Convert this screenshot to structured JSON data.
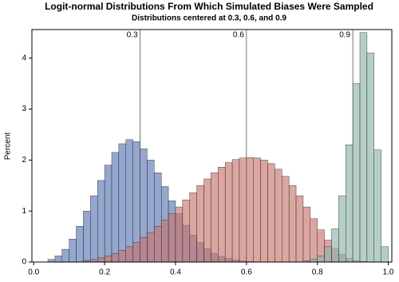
{
  "chart_data": {
    "type": "histogram",
    "title": "Logit-normal Distributions From Which Simulated Biases Were Sampled",
    "subtitle": "Distributions centered at 0.3, 0.6, and 0.9",
    "y_label": "Percent",
    "bins": [
      0,
      0.02,
      0.04,
      0.06,
      0.08,
      0.1,
      0.12,
      0.14,
      0.16,
      0.18,
      0.2,
      0.22,
      0.24,
      0.26,
      0.28,
      0.3,
      0.32,
      0.34,
      0.36,
      0.38,
      0.4,
      0.42,
      0.44,
      0.46,
      0.48,
      0.5,
      0.52,
      0.54,
      0.56,
      0.58,
      0.6,
      0.62,
      0.64,
      0.66,
      0.68,
      0.7,
      0.72,
      0.74,
      0.76,
      0.78,
      0.8,
      0.82,
      0.84,
      0.86,
      0.88,
      0.9,
      0.92,
      0.94,
      0.96,
      0.98,
      1.0
    ],
    "series": [
      {
        "color": "#5a78b4",
        "values": [
          0,
          0,
          0.05,
          0.12,
          0.25,
          0.45,
          0.7,
          1.0,
          1.3,
          1.6,
          1.9,
          2.15,
          2.32,
          2.4,
          2.36,
          2.22,
          2.0,
          1.75,
          1.48,
          1.2,
          0.95,
          0.72,
          0.53,
          0.38,
          0.26,
          0.17,
          0.11,
          0.07,
          0.04,
          0.02,
          0.01,
          0,
          0,
          0,
          0,
          0,
          0,
          0,
          0,
          0,
          0,
          0,
          0,
          0,
          0,
          0,
          0,
          0,
          0,
          0
        ]
      },
      {
        "color": "#c8766e",
        "values": [
          0,
          0,
          0,
          0,
          0,
          0,
          0,
          0.03,
          0.05,
          0.08,
          0.12,
          0.17,
          0.23,
          0.3,
          0.38,
          0.48,
          0.58,
          0.7,
          0.82,
          0.95,
          1.08,
          1.22,
          1.36,
          1.5,
          1.63,
          1.75,
          1.86,
          1.95,
          2.01,
          2.04,
          2.05,
          2.04,
          2.0,
          1.93,
          1.82,
          1.68,
          1.5,
          1.3,
          1.08,
          0.85,
          0.63,
          0.43,
          0.27,
          0.15,
          0.07,
          0.03,
          0.01,
          0,
          0,
          0
        ]
      },
      {
        "color": "#8fb3aa",
        "values": [
          0,
          0,
          0,
          0,
          0,
          0,
          0,
          0,
          0,
          0,
          0,
          0,
          0,
          0,
          0,
          0,
          0,
          0,
          0,
          0,
          0,
          0,
          0,
          0,
          0,
          0,
          0,
          0,
          0,
          0,
          0,
          0,
          0,
          0,
          0,
          0,
          0,
          0,
          0.02,
          0.05,
          0.12,
          0.3,
          0.65,
          1.3,
          2.3,
          3.5,
          4.5,
          4.1,
          2.2,
          0.3
        ]
      }
    ],
    "reference_lines": [
      0.3,
      0.6,
      0.9
    ],
    "xlim": [
      -0.005,
      1.01
    ],
    "xticks": [
      {
        "value": 0,
        "label": "0.0"
      },
      0.2,
      0.4,
      0.6,
      0.8,
      {
        "value": 1,
        "label": "1.0"
      }
    ],
    "ylim": [
      0,
      4.56
    ],
    "yticks": [
      0,
      1,
      2,
      3,
      4
    ]
  }
}
